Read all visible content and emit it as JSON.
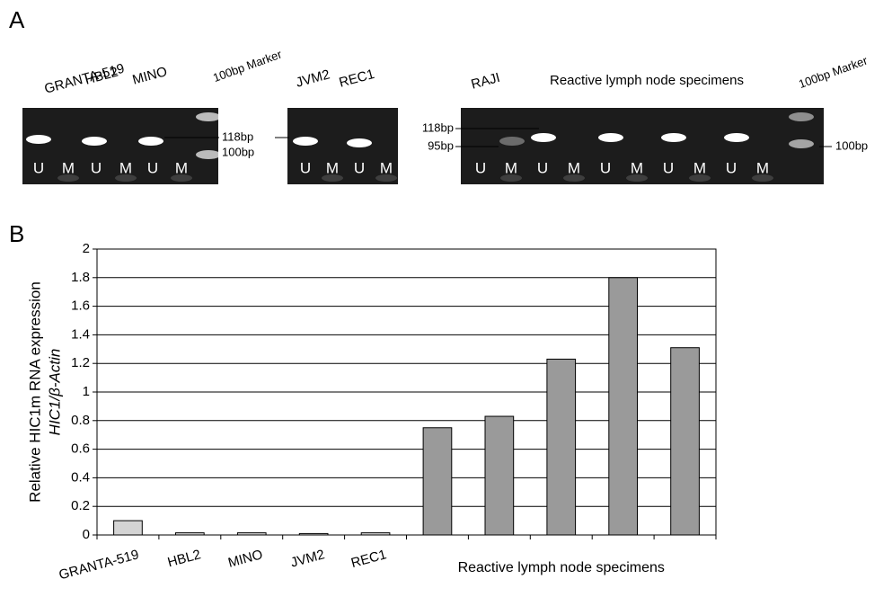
{
  "panel_a": {
    "letter": "A",
    "gels": [
      {
        "labels": [
          "GRANTA-519",
          "HBL2",
          "MINO",
          "100bp Marker"
        ],
        "lanes": [
          "U",
          "M",
          "U",
          "M",
          "U",
          "M"
        ]
      },
      {
        "labels": [
          "JVM2",
          "REC1"
        ],
        "lanes": [
          "U",
          "M",
          "U",
          "M"
        ]
      },
      {
        "labels": [
          "RAJI",
          "Reactive lymph node specimens",
          "100bp Marker"
        ],
        "lanes": [
          "U",
          "M",
          "U",
          "M",
          "U",
          "M",
          "U",
          "M",
          "U",
          "M"
        ]
      }
    ],
    "size_labels": [
      "118bp",
      "100bp",
      "118bp",
      "95bp",
      "100bp"
    ]
  },
  "chart_data": {
    "type": "bar",
    "panel_letter": "B",
    "y_label": "Relative HIC1m RNA expression",
    "y_label_2": "HIC1/β-Actin",
    "categories": [
      "GRANTA-519",
      "HBL2",
      "MINO",
      "JVM2",
      "REC1",
      null,
      null,
      null,
      null,
      null
    ],
    "category_group_label": "Reactive lymph node specimens",
    "values": [
      0.1,
      0.015,
      0.015,
      0.01,
      0.015,
      0.75,
      0.83,
      1.23,
      1.8,
      1.31
    ],
    "colors": [
      "#d4d4d4",
      "#d4d4d4",
      "#d4d4d4",
      "#d4d4d4",
      "#d4d4d4",
      "#9a9a9a",
      "#9a9a9a",
      "#9a9a9a",
      "#9a9a9a",
      "#9a9a9a"
    ],
    "ylim": [
      0,
      2
    ],
    "yticks": [
      0,
      0.2,
      0.4,
      0.6,
      0.8,
      1,
      1.2,
      1.4,
      1.6,
      1.8,
      2
    ],
    "grid": true
  }
}
